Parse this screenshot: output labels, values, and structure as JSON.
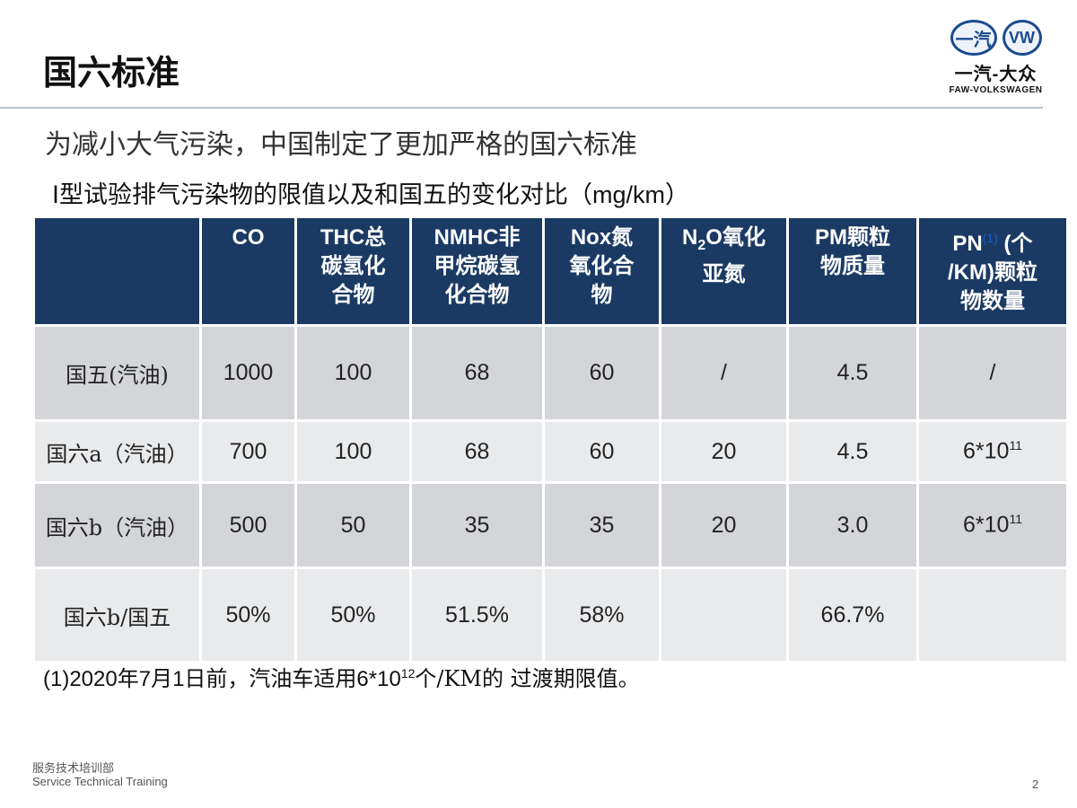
{
  "title": "国六标准",
  "logo": {
    "left_badge": "一汽",
    "right_badge": "VW",
    "cn_name": "一汽-大众",
    "en_name": "FAW-VOLKSWAGEN"
  },
  "subtitle": "为减小大气污染，中国制定了更加严格的国六标准",
  "caption": "Ⅰ型试验排气污染物的限值以及和国五的变化对比（mg/km）",
  "table": {
    "headers": [
      "",
      "CO",
      "THC总\n碳氢化\n合物",
      "NMHC非\n甲烷碳氢\n化合物",
      "Nox氮\n氧化合\n物",
      {
        "pre": "N",
        "sub": "2",
        "post": "O氧化\n亚氮"
      },
      "PM颗粒\n物质量",
      {
        "pre": "PN",
        "ref": "(1)",
        "post": " (个\n/KM)颗粒\n物数量"
      }
    ],
    "rows": [
      {
        "label": "国五(汽油)",
        "values": [
          "1000",
          "100",
          "68",
          "60",
          "/",
          "4.5",
          "/"
        ]
      },
      {
        "label": "国六a（汽油）",
        "values": [
          "700",
          "100",
          "68",
          "60",
          "20",
          "4.5",
          "6*10"
        ],
        "pn_exp": "11"
      },
      {
        "label": "国六b（汽油）",
        "values": [
          "500",
          "50",
          "35",
          "35",
          "20",
          "3.0",
          "6*10"
        ],
        "pn_exp": "11"
      },
      {
        "label": "国六b/国五",
        "values": [
          "50%",
          "50%",
          "51.5%",
          "58%",
          "",
          "66.7%",
          ""
        ]
      }
    ]
  },
  "footnote": {
    "pre": "(1)2020年7月1日前，汽油车适用6*10",
    "exp": "12",
    "post": "个/KM的 过渡期限值。"
  },
  "footer": {
    "dept": "服务技术培训部",
    "en": "Service Technical Training",
    "page": "2"
  }
}
